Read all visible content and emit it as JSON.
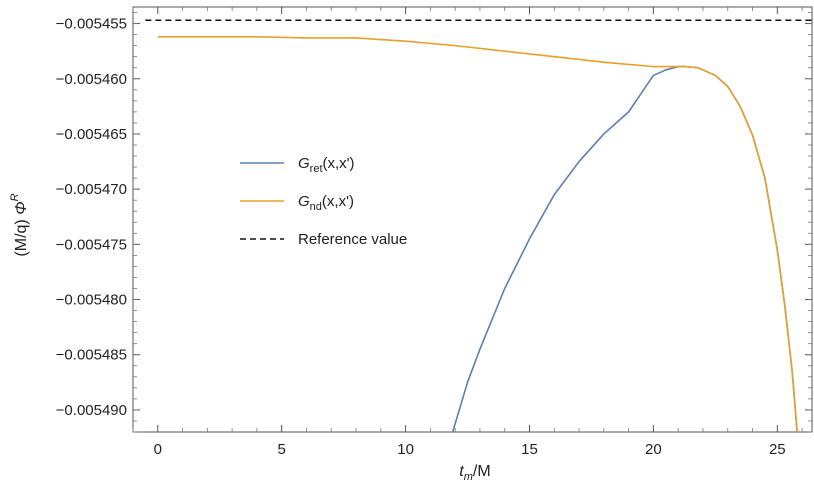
{
  "chart_data": {
    "type": "line",
    "xlabel": {
      "main": "t",
      "sub": "m",
      "unit": "/M"
    },
    "ylabel": {
      "prefix": "(M/q)",
      "symbol": "Φ",
      "sup": "R"
    },
    "xlim": [
      -1,
      26.4
    ],
    "ylim": [
      -0.005492,
      -0.0054535
    ],
    "xticks": [
      0,
      5,
      10,
      15,
      20,
      25
    ],
    "xtick_labels": [
      "0",
      "5",
      "10",
      "15",
      "20",
      "25"
    ],
    "yticks": [
      -0.005455,
      -0.00546,
      -0.005465,
      -0.00547,
      -0.005475,
      -0.00548,
      -0.005485,
      -0.00549
    ],
    "ytick_labels": [
      "−0.005455",
      "−0.005460",
      "−0.005465",
      "−0.005470",
      "−0.005475",
      "−0.005480",
      "−0.005485",
      "−0.005490"
    ],
    "legend_position": "center-left",
    "series": [
      {
        "name_main": "G",
        "name_sub": "ret",
        "name_args": "(x,x')",
        "color": "#5b7fb4",
        "style": "solid",
        "x": [
          11.9,
          12.5,
          13.0,
          14.0,
          15.0,
          16.0,
          17.0,
          18.0,
          19.0,
          20.0,
          20.5,
          21.0,
          21.3,
          21.8,
          22.5,
          23.0,
          23.5,
          24.0,
          24.5,
          25.0,
          25.3,
          25.6,
          25.8
        ],
        "y": [
          -0.005492,
          -0.0054875,
          -0.0054845,
          -0.005479,
          -0.0054745,
          -0.0054705,
          -0.0054675,
          -0.005465,
          -0.005463,
          -0.0054597,
          -0.0054592,
          -0.0054589,
          -0.0054589,
          -0.005459,
          -0.0054597,
          -0.0054607,
          -0.0054625,
          -0.0054651,
          -0.005469,
          -0.0054755,
          -0.0054805,
          -0.0054865,
          -0.005492
        ]
      },
      {
        "name_main": "G",
        "name_sub": "nd",
        "name_args": "(x,x')",
        "color": "#e8a02a",
        "style": "solid",
        "x": [
          0,
          2,
          4,
          6,
          8,
          10,
          12,
          14,
          16,
          18,
          19,
          20,
          20.5,
          21.0,
          21.3,
          21.8,
          22.5,
          23.0,
          23.5,
          24.0,
          24.5,
          25.0,
          25.3,
          25.6,
          25.8
        ],
        "y": [
          -0.0054562,
          -0.0054562,
          -0.0054562,
          -0.0054563,
          -0.0054563,
          -0.0054566,
          -0.005457,
          -0.0054575,
          -0.005458,
          -0.0054585,
          -0.0054587,
          -0.0054589,
          -0.0054589,
          -0.0054589,
          -0.0054589,
          -0.005459,
          -0.0054597,
          -0.0054607,
          -0.0054625,
          -0.0054651,
          -0.005469,
          -0.0054755,
          -0.0054805,
          -0.0054865,
          -0.005492
        ]
      },
      {
        "name_main": "Reference value",
        "name_sub": "",
        "name_args": "",
        "color": "#111111",
        "style": "dashed",
        "x": [
          -0.5,
          26.4
        ],
        "y": [
          -0.0054547,
          -0.0054547
        ]
      }
    ]
  }
}
